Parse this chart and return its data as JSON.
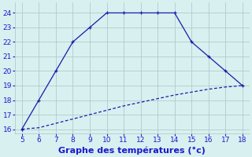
{
  "upper_x": [
    5,
    6,
    7,
    8,
    9,
    10,
    11,
    12,
    13,
    14,
    15,
    16,
    17,
    18
  ],
  "upper_y": [
    16,
    18,
    20,
    22,
    23,
    24,
    24,
    24,
    24,
    24,
    22,
    21,
    20,
    19
  ],
  "lower_x": [
    5,
    6,
    7,
    8,
    9,
    10,
    11,
    12,
    13,
    14,
    15,
    16,
    17,
    18
  ],
  "lower_y": [
    16.0,
    16.1,
    16.4,
    16.7,
    17.0,
    17.3,
    17.6,
    17.85,
    18.1,
    18.35,
    18.55,
    18.75,
    18.9,
    19.0
  ],
  "line_color": "#1a1aaa",
  "bg_color": "#d8f0f0",
  "grid_color": "#b0cccc",
  "xlabel": "Graphe des températures (°c)",
  "xlim": [
    4.6,
    18.4
  ],
  "ylim": [
    15.7,
    24.7
  ],
  "xticks": [
    5,
    6,
    7,
    8,
    9,
    10,
    11,
    12,
    13,
    14,
    15,
    16,
    17,
    18
  ],
  "yticks": [
    16,
    17,
    18,
    19,
    20,
    21,
    22,
    23,
    24
  ],
  "xlabel_color": "#1a1acc",
  "tick_color": "#1a1acc",
  "tick_fontsize": 6.5,
  "xlabel_fontsize": 8.0
}
